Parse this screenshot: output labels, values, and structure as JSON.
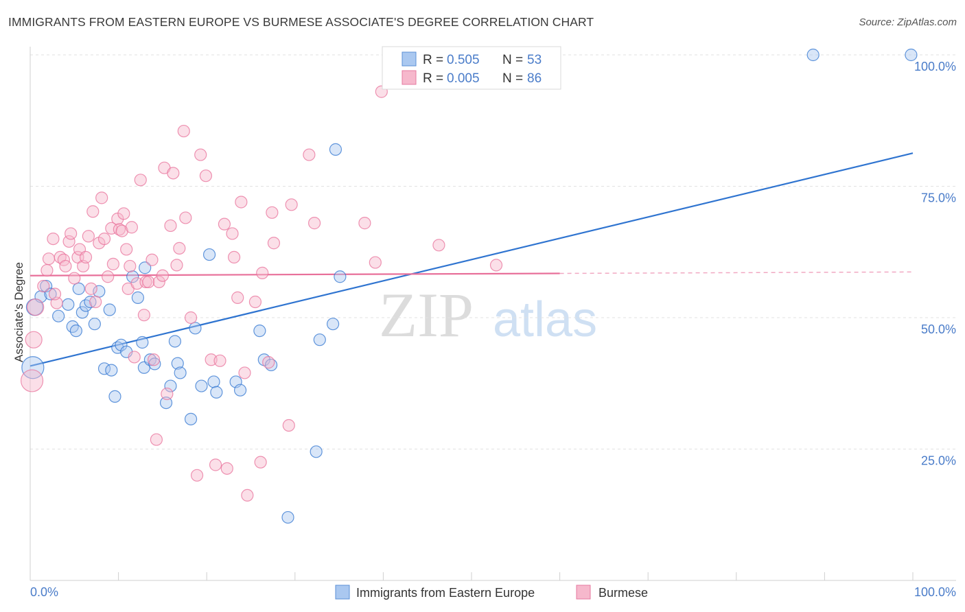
{
  "title": "IMMIGRANTS FROM EASTERN EUROPE VS BURMESE ASSOCIATE'S DEGREE CORRELATION CHART",
  "source": "Source: ZipAtlas.com",
  "colors": {
    "blue": "#2f74d0",
    "blue_fill": "#aac8f0",
    "pink": "#e8709a",
    "pink_fill": "#f6b8cc",
    "tick_text": "#4a7cc9"
  },
  "chart_data": {
    "type": "scatter",
    "title": "IMMIGRANTS FROM EASTERN EUROPE VS BURMESE ASSOCIATE'S DEGREE CORRELATION CHART",
    "xlabel": "",
    "ylabel": "Associate's Degree",
    "xlim": [
      0,
      100
    ],
    "ylim": [
      0,
      104
    ],
    "x_tick_labels": [
      "0.0%",
      "100.0%"
    ],
    "y_ticks": [
      25,
      50,
      75,
      100
    ],
    "y_tick_labels": [
      "25.0%",
      "50.0%",
      "75.0%",
      "100.0%"
    ],
    "grid": true,
    "legend": [
      {
        "name": "Immigrants from Eastern Europe",
        "r_label": "R =",
        "r": "0.505",
        "n_label": "N =",
        "n": "53"
      },
      {
        "name": "Burmese",
        "r_label": "R =",
        "r": "0.005",
        "n_label": "N =",
        "n": "86"
      }
    ],
    "series": [
      {
        "name": "Immigrants from Eastern Europe",
        "color": "blue",
        "trend": {
          "x": [
            0,
            100
          ],
          "y": [
            40.8,
            81.3
          ],
          "solid_to": 100
        },
        "points": [
          [
            0.3,
            40.5,
            "L"
          ],
          [
            0.5,
            52,
            "M"
          ],
          [
            1.2,
            54,
            "S"
          ],
          [
            1.8,
            56,
            "S"
          ],
          [
            2.3,
            54.5,
            "S"
          ],
          [
            3.2,
            50.3,
            "S"
          ],
          [
            4.3,
            52.5,
            "S"
          ],
          [
            4.8,
            48.3,
            "S"
          ],
          [
            5.5,
            55.5,
            "S"
          ],
          [
            5.9,
            51,
            "S"
          ],
          [
            6.3,
            52.3,
            "S"
          ],
          [
            6.8,
            53,
            "S"
          ],
          [
            7.3,
            48.8,
            "S"
          ],
          [
            7.8,
            55,
            "S"
          ],
          [
            8.4,
            40.3,
            "S"
          ],
          [
            9.0,
            51.5,
            "S"
          ],
          [
            9.2,
            40,
            "S"
          ],
          [
            9.9,
            44.3,
            "S"
          ],
          [
            10.3,
            44.8,
            "S"
          ],
          [
            10.9,
            43.5,
            "S"
          ],
          [
            11.6,
            57.8,
            "S"
          ],
          [
            12.7,
            45.3,
            "S"
          ],
          [
            12.2,
            53.8,
            "S"
          ],
          [
            12.9,
            40.5,
            "S"
          ],
          [
            13.6,
            42,
            "S"
          ],
          [
            14.1,
            41.2,
            "S"
          ],
          [
            15.4,
            33.8,
            "S"
          ],
          [
            15.9,
            37,
            "S"
          ],
          [
            16.4,
            45.5,
            "S"
          ],
          [
            16.7,
            41.3,
            "S"
          ],
          [
            18.2,
            30.7,
            "S"
          ],
          [
            18.7,
            48,
            "S"
          ],
          [
            19.4,
            37,
            "S"
          ],
          [
            20.3,
            62,
            "S"
          ],
          [
            20.8,
            37.8,
            "S"
          ],
          [
            21.1,
            35.8,
            "S"
          ],
          [
            23.3,
            37.8,
            "S"
          ],
          [
            23.8,
            36.2,
            "S"
          ],
          [
            26.0,
            47.5,
            "S"
          ],
          [
            26.5,
            42,
            "S"
          ],
          [
            27.3,
            41,
            "S"
          ],
          [
            29.2,
            12,
            "S"
          ],
          [
            32.4,
            24.5,
            "S"
          ],
          [
            32.8,
            45.8,
            "S"
          ],
          [
            34.3,
            48.8,
            "S"
          ],
          [
            34.6,
            82,
            "S"
          ],
          [
            35.1,
            57.8,
            "S"
          ],
          [
            88.7,
            100,
            "S"
          ],
          [
            99.8,
            100,
            "S"
          ],
          [
            17.0,
            39.5,
            "S"
          ],
          [
            5.2,
            47.5,
            "S"
          ],
          [
            13.0,
            59.5,
            "S"
          ],
          [
            9.6,
            35.0,
            "S"
          ]
        ]
      },
      {
        "name": "Burmese",
        "color": "pink",
        "trend": {
          "x": [
            0,
            100
          ],
          "y": [
            58.0,
            58.7
          ],
          "solid_to": 60
        },
        "points": [
          [
            0.2,
            38,
            "L"
          ],
          [
            0.4,
            45.8,
            "M"
          ],
          [
            0.6,
            52,
            "M"
          ],
          [
            1.5,
            56,
            "S"
          ],
          [
            1.9,
            59,
            "S"
          ],
          [
            2.1,
            61.2,
            "S"
          ],
          [
            2.6,
            65,
            "S"
          ],
          [
            3.0,
            52.8,
            "S"
          ],
          [
            3.4,
            61.5,
            "S"
          ],
          [
            3.8,
            61,
            "S"
          ],
          [
            4.0,
            59.8,
            "S"
          ],
          [
            4.4,
            64.5,
            "S"
          ],
          [
            4.6,
            66,
            "S"
          ],
          [
            5.0,
            57.5,
            "S"
          ],
          [
            5.4,
            61.5,
            "S"
          ],
          [
            5.6,
            63,
            "S"
          ],
          [
            6.0,
            59.8,
            "S"
          ],
          [
            6.3,
            61.5,
            "S"
          ],
          [
            6.6,
            65.5,
            "S"
          ],
          [
            7.1,
            70.2,
            "S"
          ],
          [
            7.4,
            53,
            "S"
          ],
          [
            7.8,
            64.2,
            "S"
          ],
          [
            8.1,
            72.8,
            "S"
          ],
          [
            8.4,
            65,
            "S"
          ],
          [
            8.8,
            57.8,
            "S"
          ],
          [
            9.2,
            67,
            "S"
          ],
          [
            9.4,
            60.2,
            "S"
          ],
          [
            9.9,
            68.8,
            "S"
          ],
          [
            10.1,
            66.8,
            "S"
          ],
          [
            10.4,
            66.5,
            "S"
          ],
          [
            10.6,
            69.8,
            "S"
          ],
          [
            10.9,
            63,
            "S"
          ],
          [
            11.1,
            55.5,
            "S"
          ],
          [
            11.5,
            67.2,
            "S"
          ],
          [
            11.8,
            42.5,
            "S"
          ],
          [
            12.1,
            56.5,
            "S"
          ],
          [
            12.5,
            76.2,
            "S"
          ],
          [
            12.9,
            50.5,
            "S"
          ],
          [
            13.1,
            56.8,
            "S"
          ],
          [
            13.4,
            56.8,
            "S"
          ],
          [
            13.8,
            61,
            "S"
          ],
          [
            14.0,
            42,
            "S"
          ],
          [
            14.3,
            26.8,
            "S"
          ],
          [
            14.6,
            56.8,
            "S"
          ],
          [
            15.0,
            58,
            "S"
          ],
          [
            15.2,
            78.5,
            "S"
          ],
          [
            15.5,
            35.5,
            "S"
          ],
          [
            15.9,
            67.5,
            "S"
          ],
          [
            16.2,
            77.5,
            "S"
          ],
          [
            16.6,
            60,
            "S"
          ],
          [
            16.9,
            63.2,
            "S"
          ],
          [
            17.4,
            85.5,
            "S"
          ],
          [
            17.6,
            69,
            "S"
          ],
          [
            18.2,
            50,
            "S"
          ],
          [
            18.9,
            20,
            "S"
          ],
          [
            19.3,
            81,
            "S"
          ],
          [
            19.9,
            77,
            "S"
          ],
          [
            20.5,
            42,
            "S"
          ],
          [
            21.0,
            22,
            "S"
          ],
          [
            21.5,
            41.8,
            "S"
          ],
          [
            22.0,
            67.8,
            "S"
          ],
          [
            22.3,
            21.3,
            "S"
          ],
          [
            22.9,
            66,
            "S"
          ],
          [
            23.1,
            61.5,
            "S"
          ],
          [
            23.5,
            53.8,
            "S"
          ],
          [
            23.9,
            72,
            "S"
          ],
          [
            24.3,
            39.5,
            "S"
          ],
          [
            24.6,
            16.2,
            "S"
          ],
          [
            25.5,
            53,
            "S"
          ],
          [
            26.1,
            22.5,
            "S"
          ],
          [
            26.3,
            58.5,
            "S"
          ],
          [
            27.0,
            41.5,
            "S"
          ],
          [
            27.4,
            70,
            "S"
          ],
          [
            27.6,
            64.2,
            "S"
          ],
          [
            29.3,
            29.5,
            "S"
          ],
          [
            29.6,
            71.5,
            "S"
          ],
          [
            31.6,
            81,
            "S"
          ],
          [
            32.2,
            68,
            "S"
          ],
          [
            37.9,
            68,
            "S"
          ],
          [
            39.1,
            60.5,
            "S"
          ],
          [
            39.8,
            93,
            "S"
          ],
          [
            46.3,
            63.8,
            "S"
          ],
          [
            52.8,
            60,
            "S"
          ],
          [
            2.8,
            54.5,
            "S"
          ],
          [
            6.9,
            55.5,
            "S"
          ],
          [
            11.3,
            59.8,
            "S"
          ]
        ]
      }
    ]
  }
}
